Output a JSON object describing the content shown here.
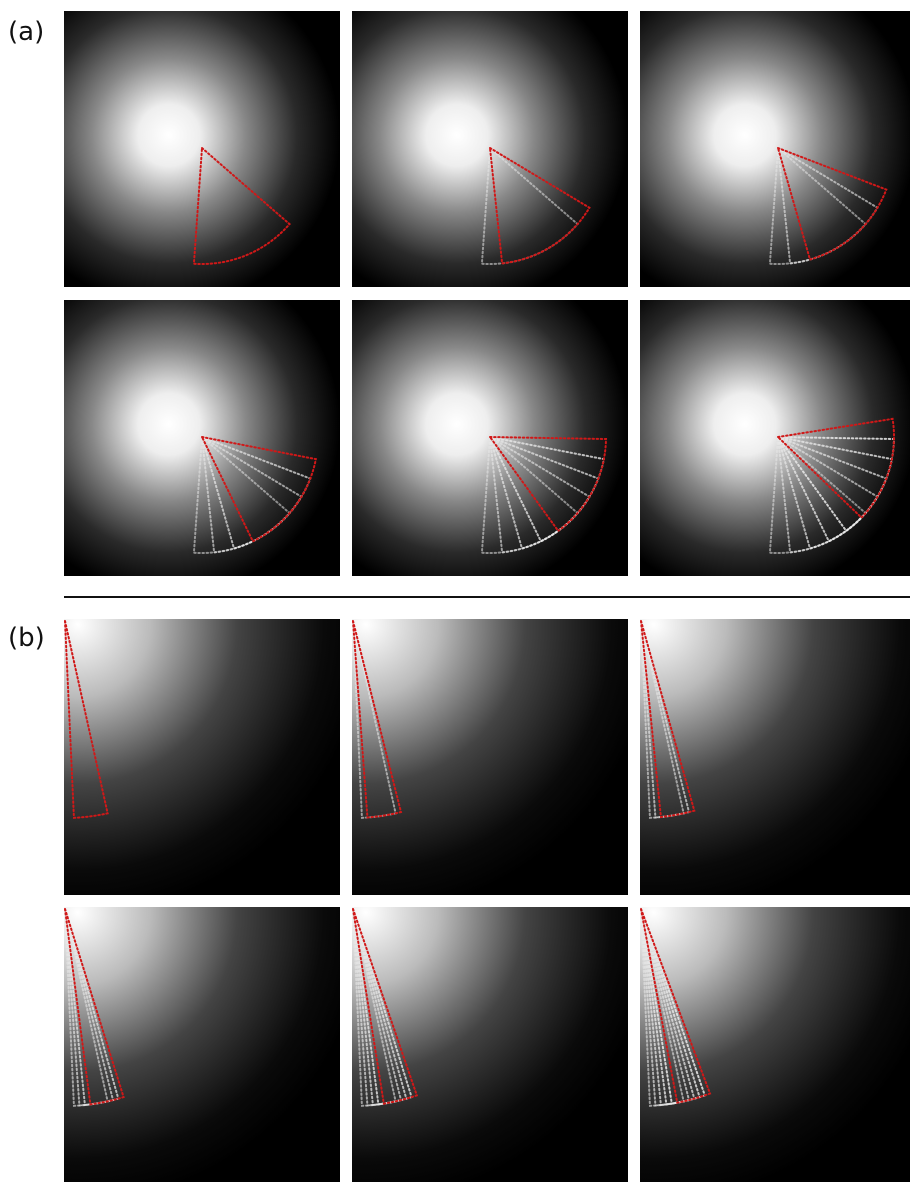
{
  "panel_a": {
    "label": "(a)"
  },
  "panel_b": {
    "label": "(b)"
  }
}
